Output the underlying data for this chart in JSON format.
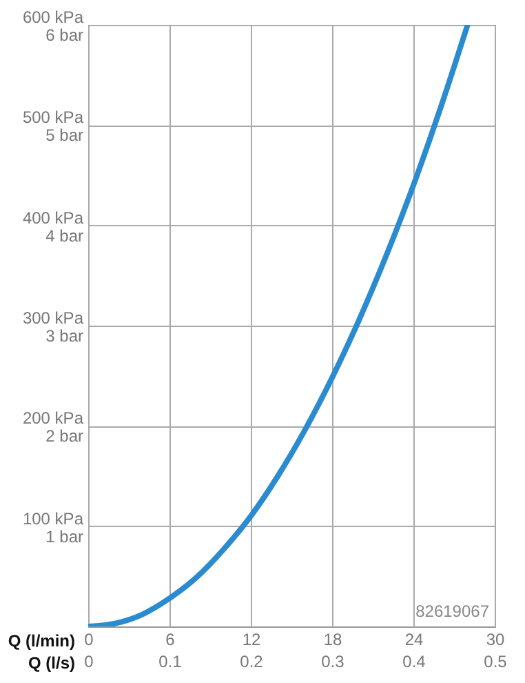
{
  "chart_data": {
    "type": "line",
    "xlabel": "Q (l/min)",
    "x2label": "Q (l/s)",
    "x": [
      0,
      2,
      4,
      6,
      8,
      10,
      12,
      14,
      16,
      18,
      20,
      22,
      24,
      26,
      28
    ],
    "series": [
      {
        "color": "#2a8bd0",
        "values": [
          0,
          3,
          12,
          28,
          49,
          77,
          110,
          150,
          196,
          248,
          306,
          370,
          440,
          517,
          600
        ]
      }
    ],
    "xlim": [
      0,
      30
    ],
    "xticks": [
      0,
      6,
      12,
      18,
      24,
      30
    ],
    "x2lim": [
      0,
      0.5
    ],
    "x2ticks": [
      0,
      0.1,
      0.2,
      0.3,
      0.4,
      0.5
    ],
    "ylim": [
      0,
      600
    ],
    "yticks": [
      {
        "value": 100,
        "label": "100 kPa"
      },
      {
        "value": 200,
        "label": "200 kPa"
      },
      {
        "value": 300,
        "label": "300 kPa"
      },
      {
        "value": 400,
        "label": "400 kPa"
      },
      {
        "value": 500,
        "label": "500 kPa"
      },
      {
        "value": 600,
        "label": "600 kPa"
      }
    ],
    "y2lim": [
      0,
      6
    ],
    "y2ticks": [
      {
        "value": 1,
        "label": "1 bar"
      },
      {
        "value": 2,
        "label": "2 bar"
      },
      {
        "value": 3,
        "label": "3 bar"
      },
      {
        "value": 4,
        "label": "4 bar"
      },
      {
        "value": 5,
        "label": "5 bar"
      },
      {
        "value": 6,
        "label": "6 bar"
      }
    ],
    "grid": true,
    "marker": "none",
    "line_style": "solid",
    "annotations": [
      "82619067"
    ]
  }
}
